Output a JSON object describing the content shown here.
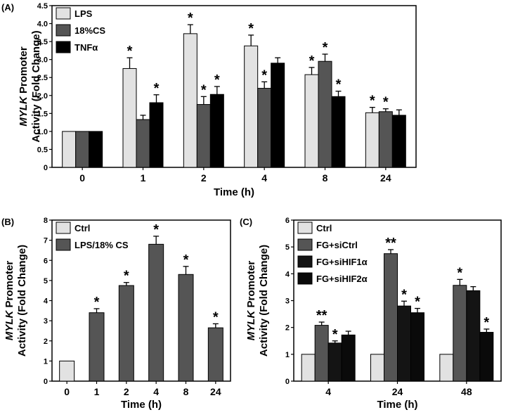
{
  "colors": {
    "light": "#e2e2e2",
    "mid": "#555555",
    "black": "#000000",
    "dark": "#141414",
    "darker": "#0a0a0a"
  },
  "chart_data": [
    {
      "type": "bar",
      "panel_label": "(A)",
      "xlabel": "Time (h)",
      "ylabel_line1_italic": "MYLK",
      "ylabel_line1_rest": " Promoter",
      "ylabel_line2": "Activity (Fold Change)",
      "ylim": [
        0,
        4.5
      ],
      "yticks": [
        "0",
        "0.5",
        "1.0",
        "1.5",
        "2.0",
        "2.5",
        "3.0",
        "3.5",
        "4.0",
        "4.5"
      ],
      "categories": [
        "0",
        "1",
        "2",
        "4",
        "8",
        "24"
      ],
      "legend_position": "top-left",
      "series": [
        {
          "name": "LPS",
          "color_key": "light",
          "values": [
            1.0,
            2.75,
            3.72,
            3.38,
            2.58,
            1.52
          ],
          "errors": [
            0,
            0.3,
            0.25,
            0.3,
            0.2,
            0.15
          ],
          "stars": [
            "",
            "*",
            "*",
            "*",
            "*",
            "*"
          ]
        },
        {
          "name": "18%CS",
          "color_key": "mid",
          "values": [
            1.0,
            1.33,
            1.75,
            2.2,
            2.95,
            1.55
          ],
          "errors": [
            0,
            0.12,
            0.22,
            0.18,
            0.2,
            0.08
          ],
          "stars": [
            "",
            "",
            "*",
            "*",
            "*",
            "*"
          ]
        },
        {
          "name": "TNFα",
          "color_key": "black",
          "values": [
            1.0,
            1.8,
            2.03,
            2.9,
            1.97,
            1.45
          ],
          "errors": [
            0,
            0.22,
            0.22,
            0.15,
            0.15,
            0.15
          ],
          "stars": [
            "",
            "*",
            "*",
            "",
            "*",
            ""
          ]
        }
      ]
    },
    {
      "type": "bar",
      "panel_label": "(B)",
      "xlabel": "Time (h)",
      "ylabel_line1_italic": "MYLK",
      "ylabel_line1_rest": " Promoter",
      "ylabel_line2": "Activity (Fold Change)",
      "ylim": [
        0,
        8
      ],
      "yticks": [
        "0",
        "1",
        "2",
        "3",
        "4",
        "5",
        "6",
        "7",
        "8"
      ],
      "categories": [
        "0",
        "1",
        "2",
        "4",
        "8",
        "24"
      ],
      "legend_position": "top-left",
      "legend": [
        {
          "name": "Ctrl",
          "color_key": "light"
        },
        {
          "name": "LPS/18% CS",
          "color_key": "mid"
        }
      ],
      "bars": [
        {
          "value": 1.0,
          "error": 0,
          "star": "",
          "color_key": "light"
        },
        {
          "value": 3.4,
          "error": 0.2,
          "star": "*",
          "color_key": "mid"
        },
        {
          "value": 4.75,
          "error": 0.15,
          "star": "*",
          "color_key": "mid"
        },
        {
          "value": 6.8,
          "error": 0.4,
          "star": "*",
          "color_key": "mid"
        },
        {
          "value": 5.3,
          "error": 0.4,
          "star": "*",
          "color_key": "mid"
        },
        {
          "value": 2.65,
          "error": 0.2,
          "star": "*",
          "color_key": "mid"
        }
      ]
    },
    {
      "type": "bar",
      "panel_label": "(C)",
      "xlabel": "Time (h)",
      "ylabel_line1_italic": "MYLK",
      "ylabel_line1_rest": " Promoter",
      "ylabel_line2": "Activity (Fold Change)",
      "ylim": [
        0,
        6
      ],
      "yticks": [
        "0",
        "1",
        "2",
        "3",
        "4",
        "5",
        "6"
      ],
      "categories": [
        "4",
        "24",
        "48"
      ],
      "legend_position": "top-left",
      "series": [
        {
          "name": "Ctrl",
          "color_key": "light",
          "values": [
            1.0,
            1.0,
            1.0
          ],
          "errors": [
            0,
            0,
            0
          ],
          "stars": [
            "",
            "",
            ""
          ]
        },
        {
          "name": "FG+siCtrl",
          "color_key": "mid",
          "values": [
            2.08,
            4.75,
            3.57
          ],
          "errors": [
            0.12,
            0.15,
            0.22
          ],
          "stars": [
            "**",
            "**",
            "*"
          ]
        },
        {
          "name": "FG+siHIF1α",
          "color_key": "dark",
          "values": [
            1.42,
            2.8,
            3.37
          ],
          "errors": [
            0.08,
            0.18,
            0.15
          ],
          "stars": [
            "*",
            "*",
            ""
          ]
        },
        {
          "name": "FG+siHIF2α",
          "color_key": "darker",
          "values": [
            1.72,
            2.55,
            1.82
          ],
          "errors": [
            0.14,
            0.16,
            0.12
          ],
          "stars": [
            "",
            "*",
            "*"
          ]
        }
      ]
    }
  ]
}
